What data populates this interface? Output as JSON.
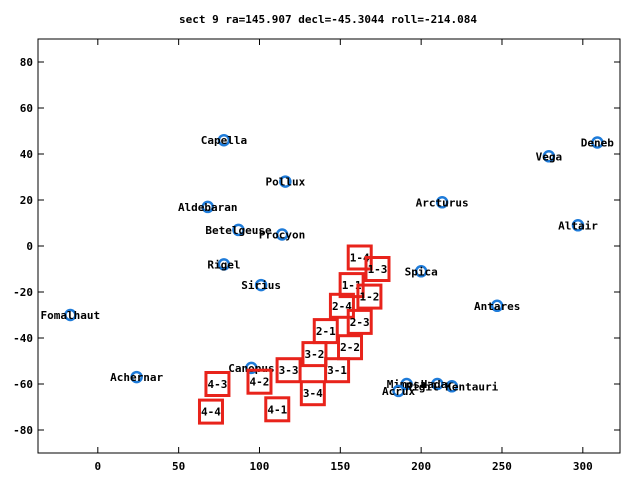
{
  "chart_data": {
    "type": "scatter",
    "title": "sect 9 ra=145.907 decl=-45.3044 roll=-214.084",
    "xlabel": "",
    "ylabel": "",
    "xlim": [
      -37,
      323
    ],
    "ylim": [
      -90,
      90
    ],
    "xticks": [
      0,
      50,
      100,
      150,
      200,
      250,
      300
    ],
    "yticks": [
      -80,
      -60,
      -40,
      -20,
      0,
      20,
      40,
      60,
      80
    ],
    "grid": false,
    "colors": {
      "star": "#1e7bd9",
      "tile": "#e8231b",
      "axis": "#000000"
    },
    "stars": [
      {
        "name": "Capella",
        "x": 78,
        "y": 46
      },
      {
        "name": "Deneb",
        "x": 309,
        "y": 45
      },
      {
        "name": "Vega",
        "x": 279,
        "y": 39
      },
      {
        "name": "Pollux",
        "x": 116,
        "y": 28
      },
      {
        "name": "Arcturus",
        "x": 213,
        "y": 19
      },
      {
        "name": "Aldebaran",
        "x": 68,
        "y": 17
      },
      {
        "name": "Altair",
        "x": 297,
        "y": 9
      },
      {
        "name": "Betelgeuse",
        "x": 87,
        "y": 7
      },
      {
        "name": "Procyon",
        "x": 114,
        "y": 5
      },
      {
        "name": "Rigel",
        "x": 78,
        "y": -8
      },
      {
        "name": "Spica",
        "x": 200,
        "y": -11
      },
      {
        "name": "Sirius",
        "x": 101,
        "y": -17
      },
      {
        "name": "Antares",
        "x": 247,
        "y": -26
      },
      {
        "name": "Fomalhaut",
        "x": -17,
        "y": -30
      },
      {
        "name": "Canopus",
        "x": 95,
        "y": -53
      },
      {
        "name": "Achernar",
        "x": 24,
        "y": -57
      },
      {
        "name": "Mimosa",
        "x": 191,
        "y": -60
      },
      {
        "name": "Hadar",
        "x": 210,
        "y": -60
      },
      {
        "name": "Rigil Kentaurus",
        "x": 219,
        "y": -61
      },
      {
        "name": "Acrux",
        "x": 186,
        "y": -63
      }
    ],
    "star_label_text": {
      "Capella": "Capella",
      "Deneb": "Deneb",
      "Vega": "Vega",
      "Pollux": "Pollux",
      "Arcturus": "Arcturus",
      "Aldebaran": "Aldebaran",
      "Altair": "Altair",
      "Betelgeuse": "Betelgeuse",
      "Procyon": "Procyon",
      "Rigel": "Rigel",
      "Spica": "Spica",
      "Sirius": "Sirius",
      "Antares": "Antares",
      "Fomalhaut": "Fomalhaut",
      "Canopus": "Canopus",
      "Achernar": "Achernar",
      "Mimosa": "Mimosa",
      "Hadar": "Hadar",
      "Rigil Kentaurus": "Rigil Kentauri",
      "Acrux": "Acrux"
    },
    "tiles": [
      {
        "label": "1-4",
        "x": 162,
        "y": -5
      },
      {
        "label": "1-3",
        "x": 173,
        "y": -10
      },
      {
        "label": "1-1",
        "x": 157,
        "y": -17
      },
      {
        "label": "1-2",
        "x": 168,
        "y": -22
      },
      {
        "label": "2-4",
        "x": 151,
        "y": -26
      },
      {
        "label": "2-3",
        "x": 162,
        "y": -33
      },
      {
        "label": "2-1",
        "x": 141,
        "y": -37
      },
      {
        "label": "2-2",
        "x": 156,
        "y": -44
      },
      {
        "label": "3-2",
        "x": 134,
        "y": -47
      },
      {
        "label": "3-1",
        "x": 148,
        "y": -54
      },
      {
        "label": "3-3",
        "x": 118,
        "y": -54
      },
      {
        "label": "4-2",
        "x": 100,
        "y": -59
      },
      {
        "label": "4-3",
        "x": 74,
        "y": -60
      },
      {
        "label": "3-4",
        "x": 133,
        "y": -64
      },
      {
        "label": "4-1",
        "x": 111,
        "y": -71
      },
      {
        "label": "4-4",
        "x": 70,
        "y": -72
      }
    ]
  }
}
